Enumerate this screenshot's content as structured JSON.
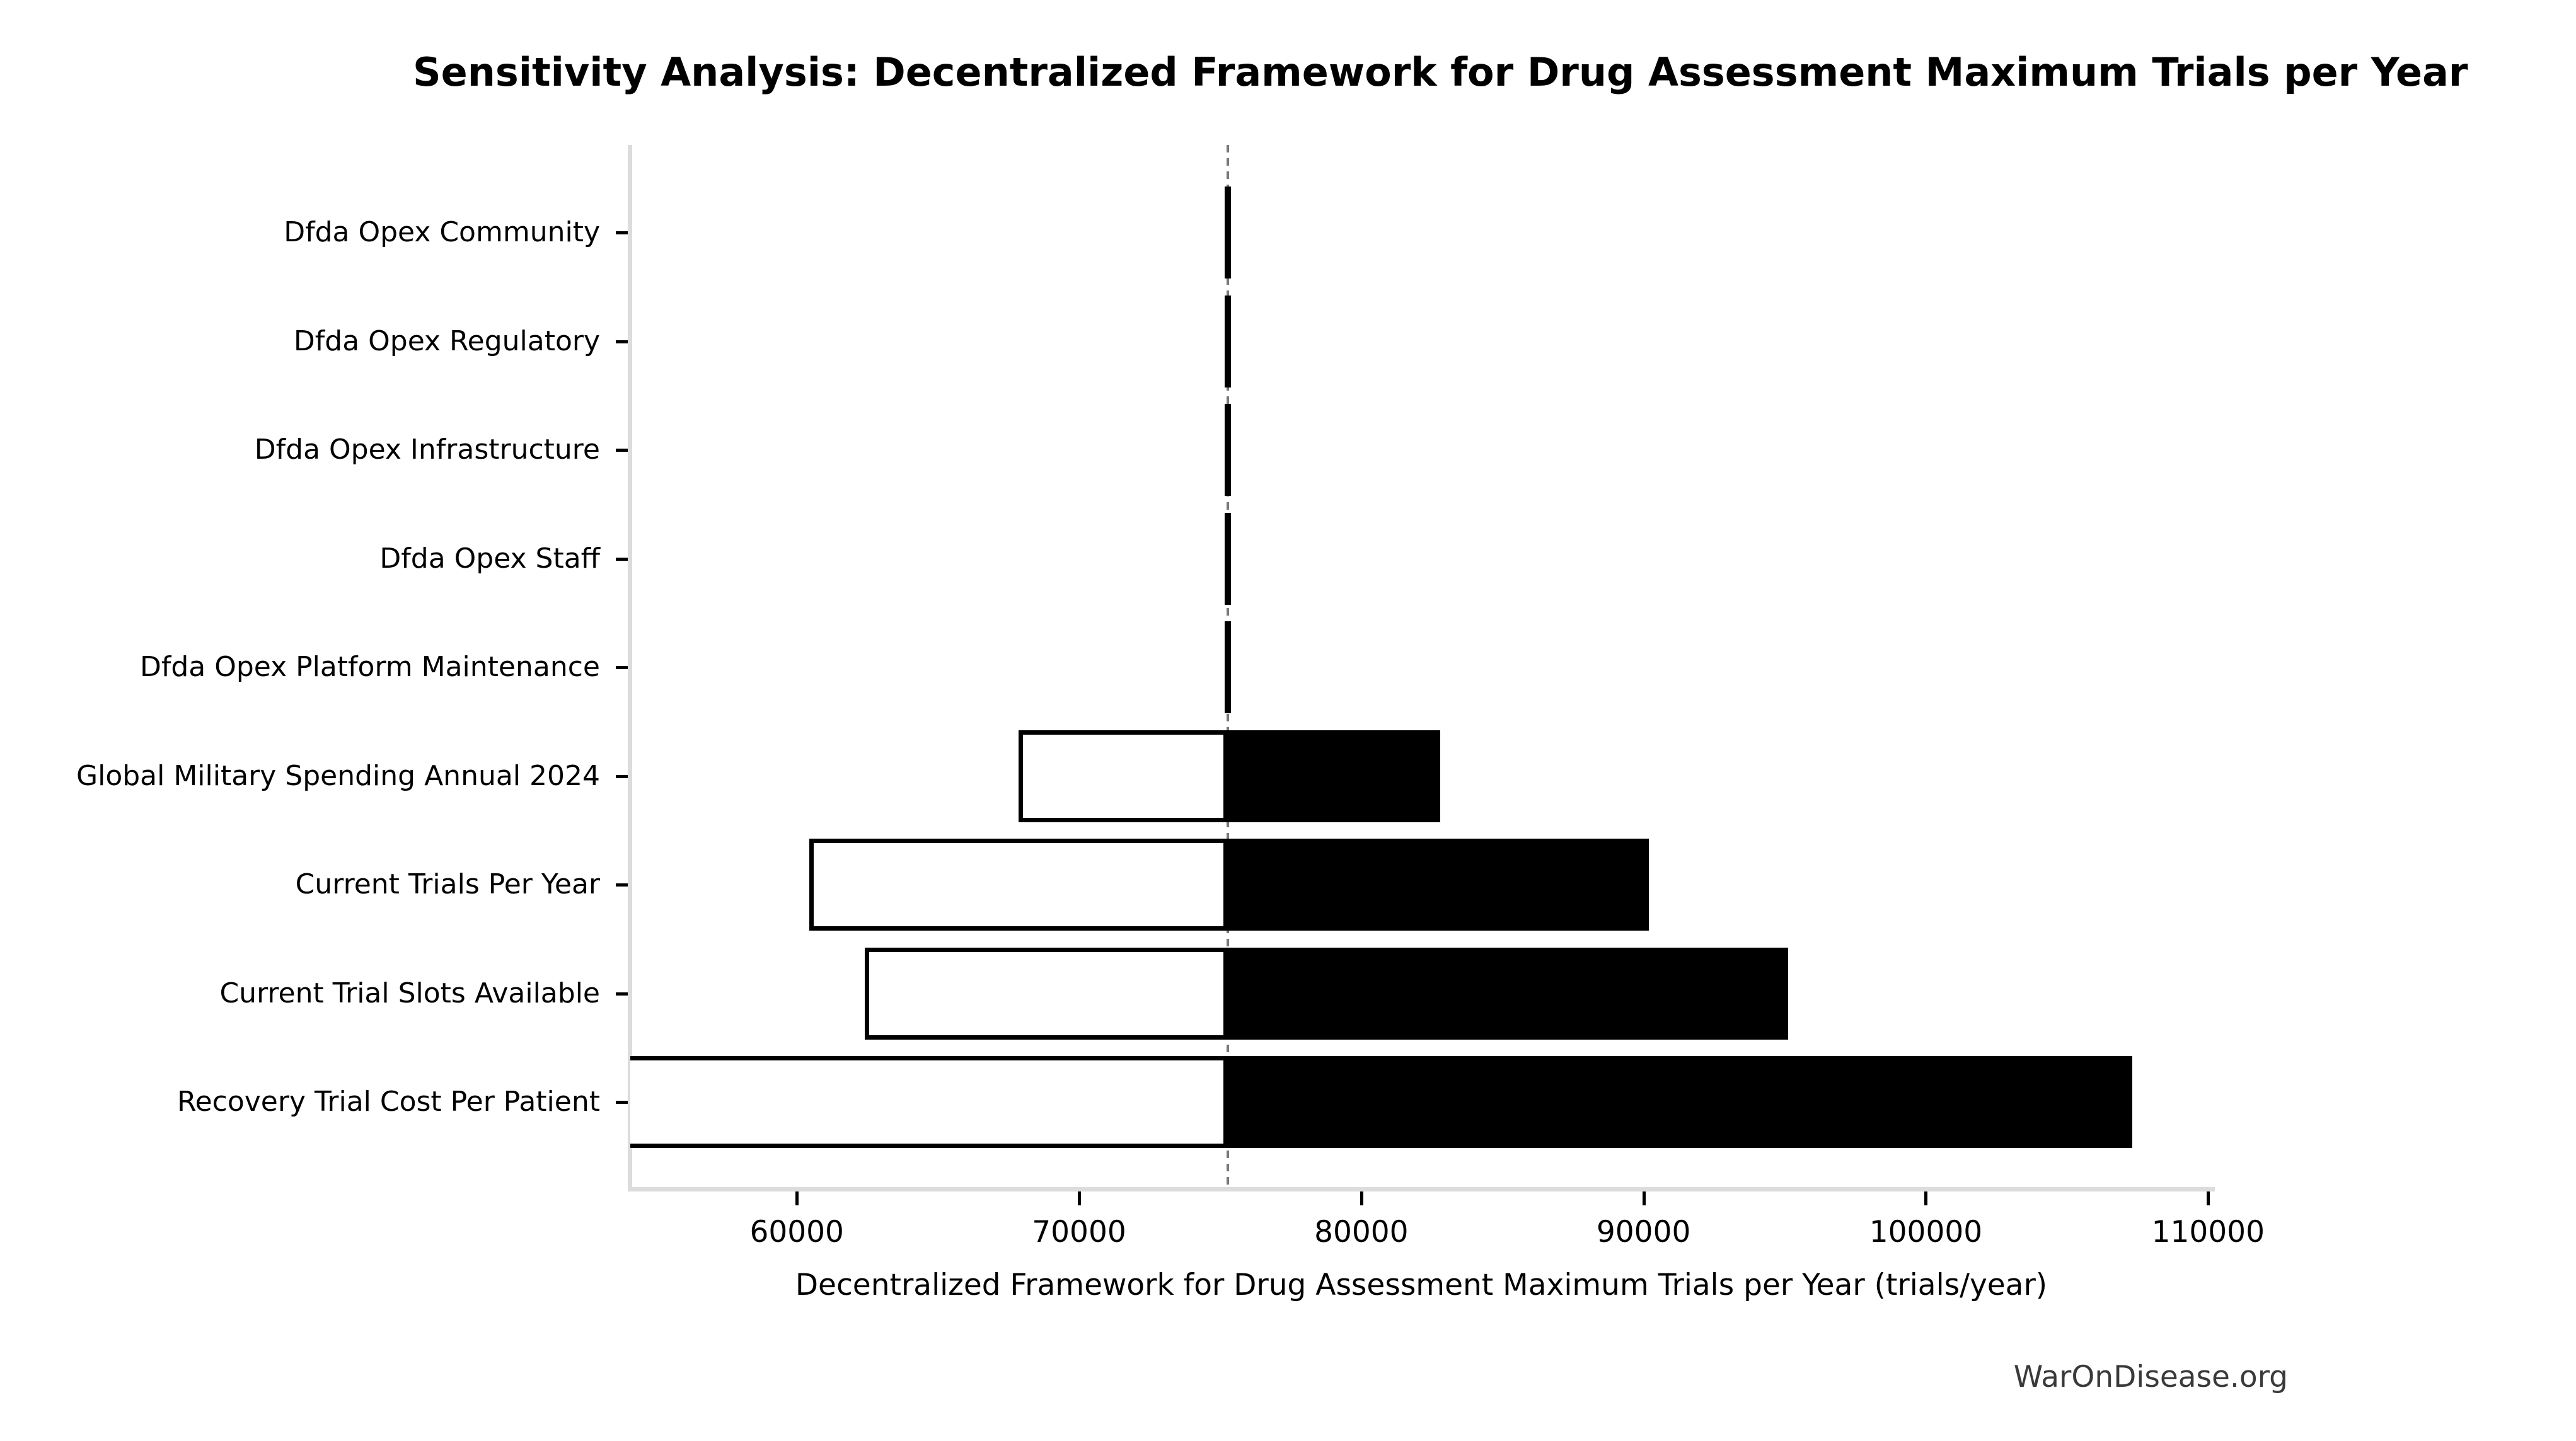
{
  "watermark": "WarOnDisease.org",
  "chart_data": {
    "type": "bar",
    "subtype": "tornado-sensitivity",
    "title": "Sensitivity Analysis: Decentralized Framework for Drug Assessment Maximum Trials per Year",
    "xlabel": "Decentralized Framework for Drug Assessment Maximum Trials per Year (trials/year)",
    "ylabel": "",
    "baseline": 75270,
    "xlim": [
      54100,
      110150
    ],
    "xticks": [
      60000,
      70000,
      80000,
      90000,
      100000,
      110000
    ],
    "grid": false,
    "legend": "none",
    "colors": {
      "low_side_fill": "#ffffff",
      "high_side_fill": "#000000",
      "bar_edge": "#000000",
      "baseline_line": "#7a7a7a",
      "spine": "#dcdcdc",
      "tick": "#000000",
      "watermark": "#3a3a3a"
    },
    "rows": [
      {
        "label": "Dfda Opex Community",
        "low": 75160,
        "high": 75380
      },
      {
        "label": "Dfda Opex Regulatory",
        "low": 75160,
        "high": 75380
      },
      {
        "label": "Dfda Opex Infrastructure",
        "low": 75160,
        "high": 75380
      },
      {
        "label": "Dfda Opex Staff",
        "low": 75160,
        "high": 75380
      },
      {
        "label": "Dfda Opex Platform Maintenance",
        "low": 75160,
        "high": 75380
      },
      {
        "label": "Global Military Spending Annual 2024",
        "low": 67860,
        "high": 82790
      },
      {
        "label": "Current Trials Per Year",
        "low": 60450,
        "high": 90180
      },
      {
        "label": "Current Trial Slots Available",
        "low": 62410,
        "high": 95130
      },
      {
        "label": "Recovery Trial Cost Per Patient",
        "low": 54100,
        "high": 107320
      }
    ]
  }
}
